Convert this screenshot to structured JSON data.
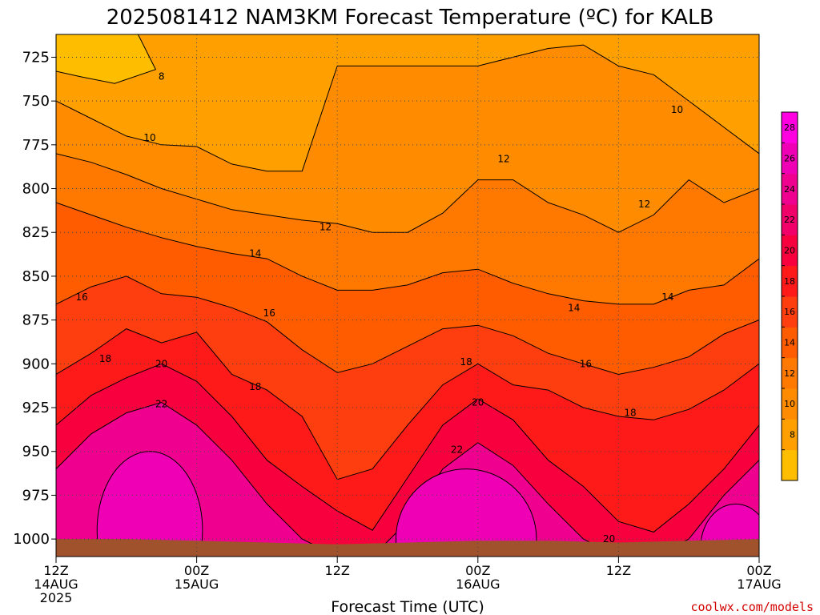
{
  "title": "2025081412 NAM3KM Forecast Temperature (ºC) for KALB",
  "credit": "coolwx.com/models",
  "chart_data": {
    "type": "heatmap",
    "title": "2025081412 NAM3KM Forecast Temperature (ºC) for KALB",
    "xlabel": "Forecast Time (UTC)",
    "ylabel": "",
    "x_range_hours": [
      0,
      60
    ],
    "y_range_hPa": [
      1010,
      712
    ],
    "y_scale": "linear",
    "y_inverted": true,
    "grid": true,
    "y_ticks": [
      725,
      750,
      775,
      800,
      825,
      850,
      875,
      900,
      925,
      950,
      975,
      1000
    ],
    "x_ticks": [
      {
        "hour": 0,
        "line1": "12Z",
        "line2": "14AUG",
        "line3": "2025"
      },
      {
        "hour": 12,
        "line1": "00Z",
        "line2": "15AUG",
        "line3": ""
      },
      {
        "hour": 24,
        "line1": "12Z",
        "line2": "",
        "line3": ""
      },
      {
        "hour": 36,
        "line1": "00Z",
        "line2": "16AUG",
        "line3": ""
      },
      {
        "hour": 48,
        "line1": "12Z",
        "line2": "",
        "line3": ""
      },
      {
        "hour": 60,
        "line1": "00Z",
        "line2": "17AUG",
        "line3": ""
      }
    ],
    "colorbar": {
      "levels": [
        8,
        10,
        12,
        14,
        16,
        18,
        20,
        22,
        24,
        26,
        28
      ],
      "colors": [
        "#ffbd00",
        "#ffa000",
        "#ff8c00",
        "#ff7800",
        "#ff5c00",
        "#ff3e10",
        "#ff1a1a",
        "#f8003e",
        "#f2006a",
        "#f0008e",
        "#f000b4",
        "#ff00e0"
      ],
      "units": "ºC"
    },
    "surface_pressure_hPa": [
      1000,
      1000,
      1001,
      1002,
      1003,
      1002,
      1001,
      1001,
      1002,
      1001,
      1000
    ],
    "contour_labels": [
      {
        "value": "8",
        "hour": 9.0,
        "p": 736
      },
      {
        "value": "10",
        "hour": 8.0,
        "p": 771
      },
      {
        "value": "10",
        "hour": 53.0,
        "p": 755
      },
      {
        "value": "12",
        "hour": 23.0,
        "p": 822
      },
      {
        "value": "12",
        "hour": 38.2,
        "p": 783
      },
      {
        "value": "12",
        "hour": 50.2,
        "p": 809
      },
      {
        "value": "14",
        "hour": 17.0,
        "p": 837
      },
      {
        "value": "14",
        "hour": 44.2,
        "p": 868
      },
      {
        "value": "14",
        "hour": 52.2,
        "p": 862
      },
      {
        "value": "16",
        "hour": 2.2,
        "p": 862
      },
      {
        "value": "16",
        "hour": 18.2,
        "p": 871
      },
      {
        "value": "16",
        "hour": 45.2,
        "p": 900
      },
      {
        "value": "18",
        "hour": 4.2,
        "p": 897
      },
      {
        "value": "18",
        "hour": 17.0,
        "p": 913
      },
      {
        "value": "18",
        "hour": 35.0,
        "p": 899
      },
      {
        "value": "18",
        "hour": 49.0,
        "p": 928
      },
      {
        "value": "20",
        "hour": 9.0,
        "p": 900
      },
      {
        "value": "20",
        "hour": 36.0,
        "p": 922
      },
      {
        "value": "20",
        "hour": 47.2,
        "p": 1000
      },
      {
        "value": "22",
        "hour": 9.0,
        "p": 923
      },
      {
        "value": "22",
        "hour": 34.2,
        "p": 949
      }
    ],
    "bands_hPa_at_hours": {
      "hours": [
        0,
        3,
        6,
        9,
        12,
        15,
        18,
        21,
        24,
        27,
        30,
        33,
        36,
        39,
        42,
        45,
        48,
        51,
        54,
        57,
        60
      ],
      "iso10": [
        750,
        760,
        770,
        775,
        776,
        786,
        790,
        790,
        730,
        730,
        730,
        730,
        730,
        725,
        720,
        718,
        730,
        735,
        750,
        765,
        780
      ],
      "iso12": [
        780,
        785,
        792,
        800,
        806,
        812,
        815,
        818,
        820,
        825,
        825,
        814,
        795,
        795,
        808,
        815,
        825,
        815,
        795,
        808,
        800
      ],
      "iso14": [
        808,
        815,
        822,
        828,
        833,
        837,
        840,
        850,
        858,
        858,
        855,
        848,
        846,
        854,
        860,
        864,
        866,
        866,
        858,
        855,
        840
      ],
      "iso16": [
        866,
        856,
        850,
        860,
        862,
        868,
        876,
        892,
        905,
        900,
        890,
        880,
        878,
        884,
        894,
        900,
        906,
        902,
        896,
        883,
        875
      ],
      "iso18": [
        906,
        894,
        880,
        888,
        882,
        906,
        915,
        930,
        966,
        960,
        935,
        912,
        900,
        912,
        915,
        925,
        930,
        932,
        926,
        915,
        900
      ],
      "iso20": [
        935,
        918,
        908,
        900,
        910,
        930,
        955,
        970,
        984,
        995,
        965,
        935,
        920,
        932,
        955,
        970,
        990,
        996,
        980,
        960,
        935
      ],
      "iso22": [
        960,
        940,
        928,
        922,
        935,
        955,
        980,
        1000,
        1010,
        1010,
        990,
        960,
        945,
        958,
        980,
        1000,
        1010,
        1010,
        1000,
        975,
        955
      ]
    }
  }
}
